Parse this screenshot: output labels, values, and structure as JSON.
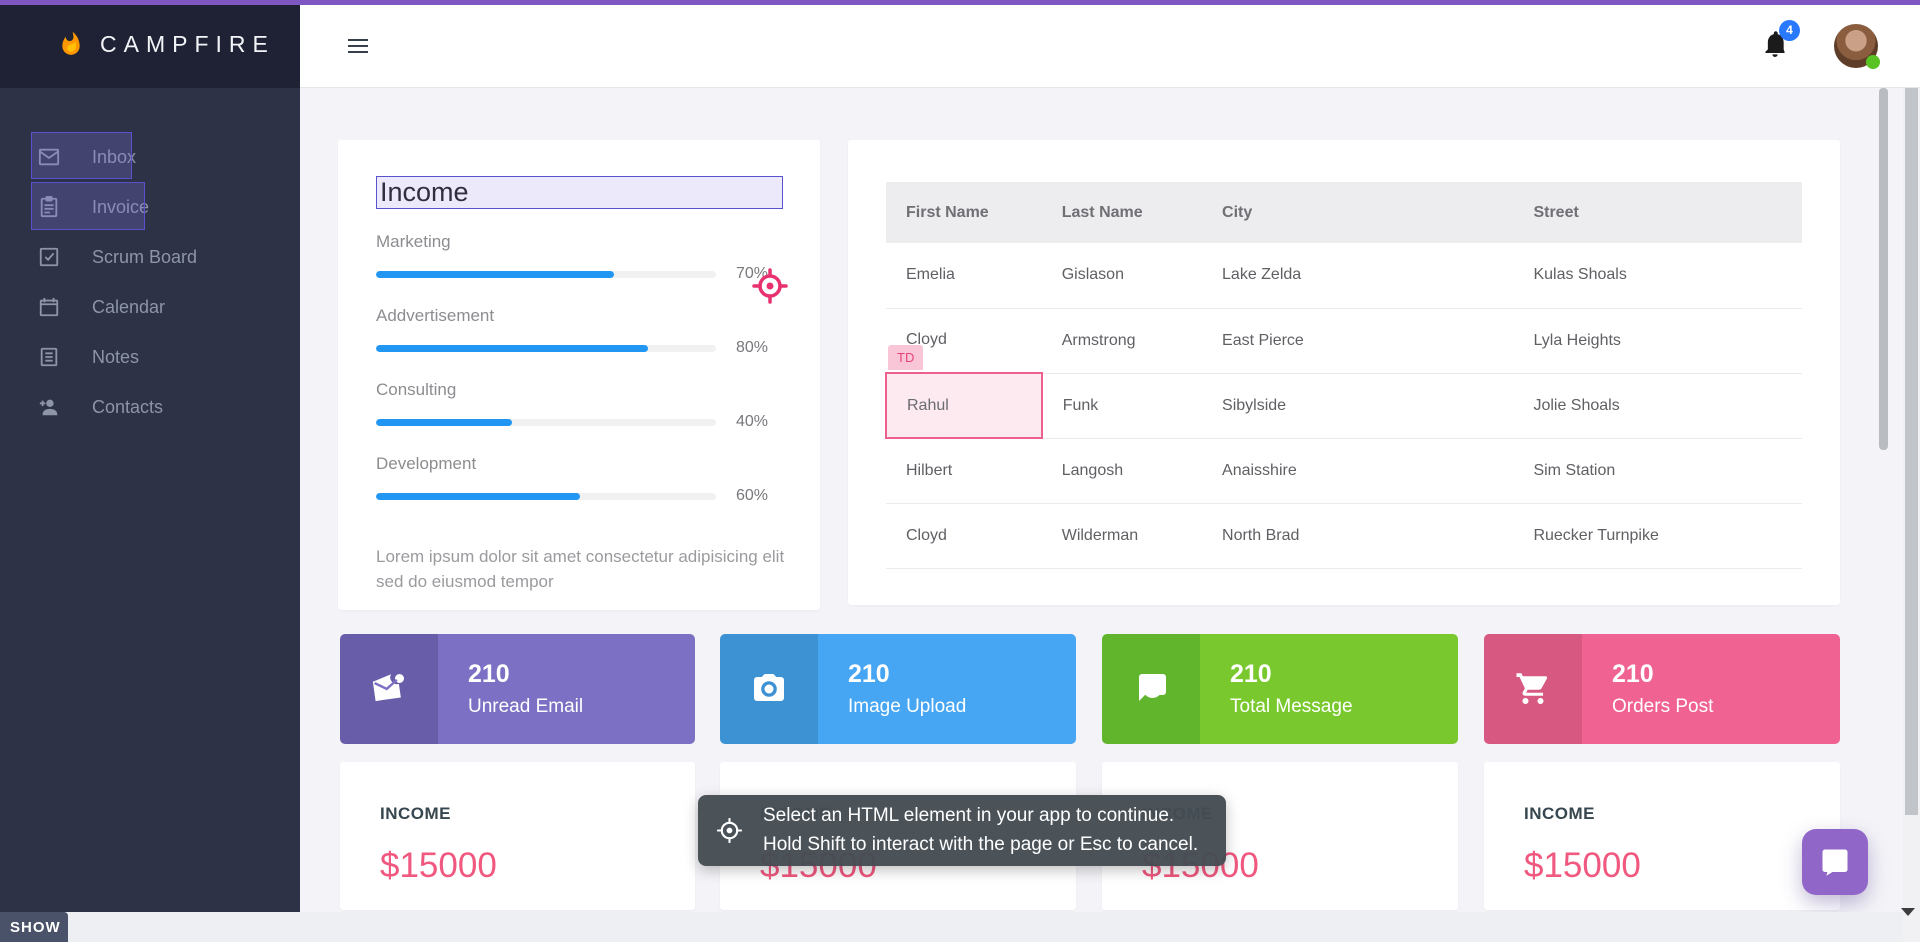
{
  "brand": {
    "name": "CAMPFIRE"
  },
  "navbar": {
    "notification_count": "4"
  },
  "sidebar": {
    "items": [
      {
        "label": "Inbox"
      },
      {
        "label": "Invoice"
      },
      {
        "label": "Scrum Board"
      },
      {
        "label": "Calendar"
      },
      {
        "label": "Notes"
      },
      {
        "label": "Contacts"
      }
    ]
  },
  "income_panel": {
    "title": "Income",
    "metrics": [
      {
        "label": "Marketing",
        "percent": 70,
        "pct_label": "70%"
      },
      {
        "label": "Addvertisement",
        "percent": 80,
        "pct_label": "80%"
      },
      {
        "label": "Consulting",
        "percent": 40,
        "pct_label": "40%"
      },
      {
        "label": "Development",
        "percent": 60,
        "pct_label": "60%"
      }
    ],
    "description": "Lorem ipsum dolor sit amet consectetur adipisicing elit sed do eiusmod tempor",
    "bar_color": "#2196f3"
  },
  "table": {
    "headers": [
      "First Name",
      "Last Name",
      "City",
      "Street"
    ],
    "rows": [
      [
        "Emelia",
        "Gislason",
        "Lake Zelda",
        "Kulas Shoals"
      ],
      [
        "Cloyd",
        "Armstrong",
        "East Pierce",
        "Lyla Heights"
      ],
      [
        "Rahul",
        "Funk",
        "Sibylside",
        "Jolie Shoals"
      ],
      [
        "Hilbert",
        "Langosh",
        "Anaisshire",
        "Sim Station"
      ],
      [
        "Cloyd",
        "Wilderman",
        "North Brad",
        "Ruecker Turnpike"
      ]
    ],
    "inspector_hover": {
      "tag": "TD",
      "highlighted_cell": "Rahul",
      "highlight_color": "#f06292"
    }
  },
  "stat_cards": [
    {
      "value": "210",
      "label": "Unread Email",
      "icon": "mail-icon",
      "accent": "#685da9",
      "body_color": "#7b70c4"
    },
    {
      "value": "210",
      "label": "Image Upload",
      "icon": "camera-icon",
      "accent": "#3d92d4",
      "body_color": "#47a6f3"
    },
    {
      "value": "210",
      "label": "Total Message",
      "icon": "chat-icon",
      "accent": "#61b52d",
      "body_color": "#79c92e"
    },
    {
      "value": "210",
      "label": "Orders Post",
      "icon": "cart-icon",
      "accent": "#d75880",
      "body_color": "#f06292"
    }
  ],
  "income_cards": [
    {
      "title": "INCOME",
      "amount": "$15000"
    },
    {
      "title": "INCOME",
      "amount": "$15000"
    },
    {
      "title": "INCOME",
      "amount": "$15000"
    },
    {
      "title": "INCOME",
      "amount": "$15000"
    }
  ],
  "inspector": {
    "tooltip_line1": "Select an HTML element in your app to continue.",
    "tooltip_line2": "Hold Shift to interact with the page or Esc to cancel.",
    "accent_color": "#e8316f"
  },
  "show_button": {
    "label": "SHOW"
  },
  "colors": {
    "top_strip": "#7e57c2",
    "badge": "#2979ff",
    "fab": "#9066c8",
    "sidebar": "#2d3246",
    "sidebar_header": "#1e2234"
  }
}
